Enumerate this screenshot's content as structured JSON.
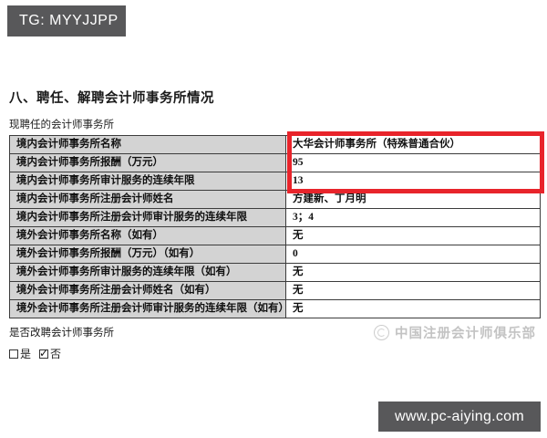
{
  "colors": {
    "bar_gray": "#58585a",
    "highlight_red": "#e8242b",
    "table_label_bg": "#d3d3d3",
    "watermark_gray": "#c3c3c3"
  },
  "tag_bar": {
    "label": "TG: MYYJJPP"
  },
  "section": {
    "title": "八、聘任、解聘会计师事务所情况",
    "subtitle": "现聘任的会计师事务所"
  },
  "table": {
    "rows": [
      {
        "label": "境内会计师事务所名称",
        "value": "大华会计师事务所（特殊普通合伙）"
      },
      {
        "label": "境内会计师事务所报酬（万元）",
        "value": "95"
      },
      {
        "label": "境内会计师事务所审计服务的连续年限",
        "value": "13"
      },
      {
        "label": "境内会计师事务所注册会计师姓名",
        "value": "方建新、丁月明"
      },
      {
        "label": "境内会计师事务所注册会计师审计服务的连续年限",
        "value": "3；4"
      },
      {
        "label": "境外会计师事务所名称（如有）",
        "value": "无"
      },
      {
        "label": "境外会计师事务所报酬（万元）（如有）",
        "value": "0"
      },
      {
        "label": "境外会计师事务所审计服务的连续年限（如有）",
        "value": "无"
      },
      {
        "label": "境外会计师事务所注册会计师姓名（如有）",
        "value": "无"
      },
      {
        "label": "境外会计师事务所注册会计师审计服务的连续年限（如有）",
        "value": "无"
      }
    ]
  },
  "question": {
    "label": "是否改聘会计师事务所",
    "options": [
      {
        "label": "是",
        "checked": false
      },
      {
        "label": "否",
        "checked": true
      }
    ]
  },
  "watermark": {
    "text": "中国注册会计师俱乐部"
  },
  "site_bar": {
    "label": "www.pc-aiying.com"
  }
}
